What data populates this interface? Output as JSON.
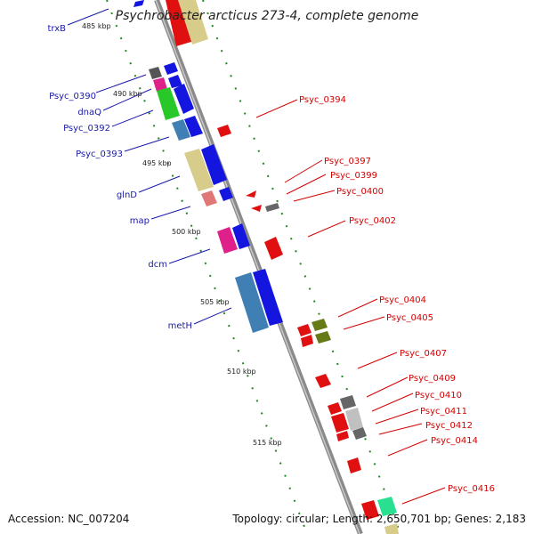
{
  "title": "Psychrobacter arcticus 273-4, complete genome",
  "footer": {
    "accession": "Accession: NC_007204",
    "topology": "Topology: circular; Length: 2,650,701 bp; Genes: 2,183"
  },
  "scale_labels": [
    "485 kbp",
    "490 kbp",
    "495 kbp",
    "500 kbp",
    "505 kbp",
    "510 kbp",
    "515 kbp"
  ],
  "left_genes": [
    "trxB",
    "Psyc_0390",
    "dnaQ",
    "Psyc_0392",
    "Psyc_0393",
    "glnD",
    "map",
    "dcm",
    "metH"
  ],
  "right_genes": [
    "Psyc_0394",
    "Psyc_0397",
    "Psyc_0399",
    "Psyc_0400",
    "Psyc_0402",
    "Psyc_0404",
    "Psyc_0405",
    "Psyc_0407",
    "Psyc_0409",
    "Psyc_0410",
    "Psyc_0411",
    "Psyc_0412",
    "Psyc_0414",
    "Psyc_0416"
  ],
  "colors": {
    "backbone": "#8a8a8a",
    "tick": "#1e8a1e",
    "forward": "#1515e0",
    "reverse": "#e01010",
    "left_label": "#1a1aa8",
    "right_label": "#d40000"
  }
}
